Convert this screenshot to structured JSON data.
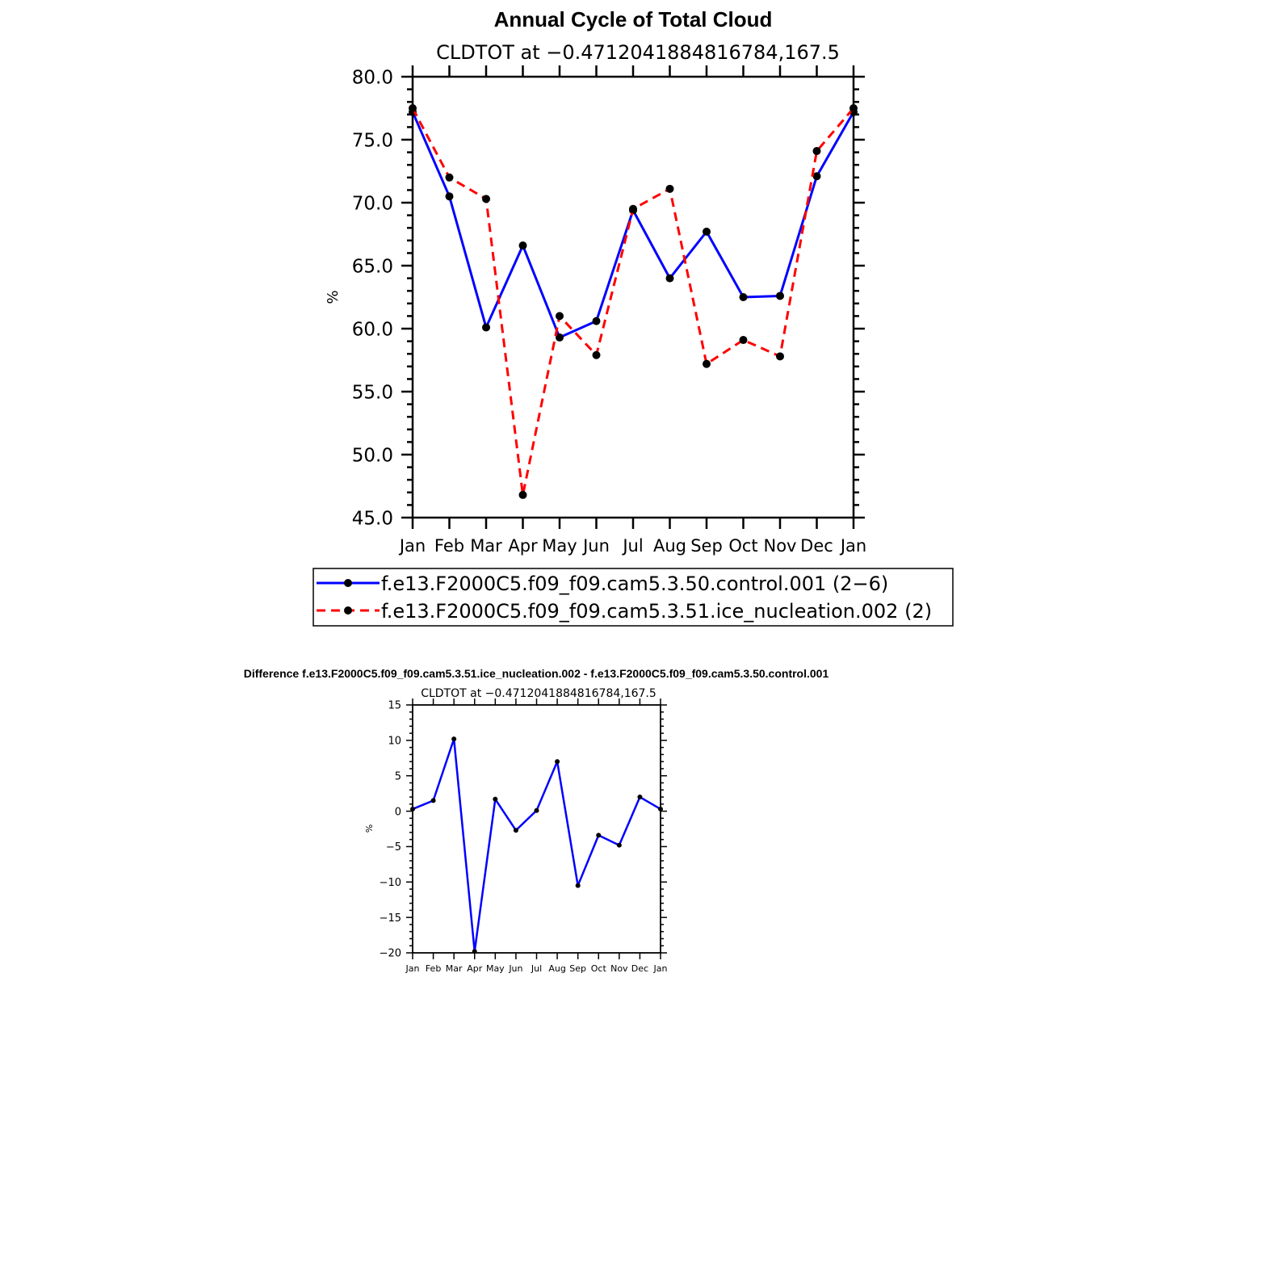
{
  "chart_data": [
    {
      "type": "line",
      "title": "Annual Cycle of Total Cloud",
      "subtitle": "CLDTOT at −0.4712041884816784,167.5",
      "xlabel": "",
      "ylabel": "%",
      "categories": [
        "Jan",
        "Feb",
        "Mar",
        "Apr",
        "May",
        "Jun",
        "Jul",
        "Aug",
        "Sep",
        "Oct",
        "Nov",
        "Dec",
        "Jan"
      ],
      "ylim": [
        45,
        80
      ],
      "yticks": [
        45,
        50,
        55,
        60,
        65,
        70,
        75,
        80
      ],
      "ytick_labels": [
        "45.0",
        "50.0",
        "55.0",
        "60.0",
        "65.0",
        "70.0",
        "75.0",
        "80.0"
      ],
      "series": [
        {
          "name": "f.e13.F2000C5.f09_f09.cam5.3.50.control.001 (2−6)",
          "color": "#0000ff",
          "dash": "solid",
          "values": [
            77.2,
            70.5,
            60.1,
            66.6,
            59.3,
            60.6,
            69.4,
            64.0,
            67.7,
            62.5,
            62.6,
            72.1,
            77.2
          ]
        },
        {
          "name": "f.e13.F2000C5.f09_f09.cam5.3.51.ice_nucleation.002 (2)",
          "color": "#ff0000",
          "dash": "dashed",
          "values": [
            77.5,
            72.0,
            70.3,
            46.8,
            61.0,
            57.9,
            69.5,
            71.1,
            57.2,
            59.1,
            57.8,
            74.1,
            77.5
          ]
        }
      ],
      "legend": "bottom"
    },
    {
      "type": "line",
      "title": "Difference f.e13.F2000C5.f09_f09.cam5.3.51.ice_nucleation.002 - f.e13.F2000C5.f09_f09.cam5.3.50.control.001",
      "subtitle": "CLDTOT at −0.4712041884816784,167.5",
      "xlabel": "",
      "ylabel": "%",
      "categories": [
        "Jan",
        "Feb",
        "Mar",
        "Apr",
        "May",
        "Jun",
        "Jul",
        "Aug",
        "Sep",
        "Oct",
        "Nov",
        "Dec",
        "Jan"
      ],
      "ylim": [
        -20,
        15
      ],
      "yticks": [
        -20,
        -15,
        -10,
        -5,
        0,
        5,
        10,
        15
      ],
      "ytick_labels": [
        "−20",
        "−15",
        "−10",
        "−5",
        "0",
        "5",
        "10",
        "15"
      ],
      "series": [
        {
          "name": "Difference",
          "color": "#0000ff",
          "dash": "solid",
          "values": [
            0.3,
            1.5,
            10.2,
            -19.8,
            1.7,
            -2.7,
            0.1,
            7.0,
            -10.5,
            -3.4,
            -4.8,
            2.0,
            0.3
          ]
        }
      ]
    }
  ]
}
